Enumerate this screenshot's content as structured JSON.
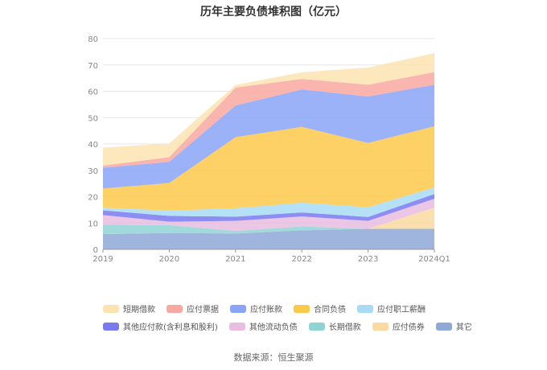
{
  "chart_data": {
    "type": "area",
    "stacked": true,
    "title": "历年主要负债堆积图（亿元）",
    "categories": [
      "2019",
      "2020",
      "2021",
      "2022",
      "2023",
      "2024Q1"
    ],
    "ylim": [
      0,
      80
    ],
    "yticks": [
      0,
      10,
      20,
      30,
      40,
      50,
      60,
      70,
      80
    ],
    "grid": true,
    "legend_position": "bottom",
    "series": [
      {
        "name": "其它",
        "color": "#8ea8d8",
        "values": [
          5.8,
          6.2,
          6.0,
          7.2,
          7.8,
          7.8
        ]
      },
      {
        "name": "应付债券",
        "color": "#fcd9a0",
        "values": [
          0.0,
          0.0,
          0.0,
          0.0,
          0.0,
          8.0
        ]
      },
      {
        "name": "长期借款",
        "color": "#8fd4d4",
        "values": [
          3.5,
          3.0,
          1.0,
          1.5,
          0.0,
          0.0
        ]
      },
      {
        "name": "其他流动负债",
        "color": "#e8bde0",
        "values": [
          3.7,
          1.3,
          3.8,
          3.8,
          3.0,
          3.4
        ]
      },
      {
        "name": "其他应付款(含利息和股利)",
        "color": "#7a7af0",
        "values": [
          1.8,
          2.2,
          1.6,
          1.5,
          1.5,
          1.8
        ]
      },
      {
        "name": "应付职工薪酬",
        "color": "#a8dcf4",
        "values": [
          1.0,
          2.0,
          3.2,
          3.7,
          3.7,
          2.5
        ]
      },
      {
        "name": "合同负债",
        "color": "#fdc94a",
        "values": [
          7.3,
          10.5,
          27.0,
          28.8,
          24.4,
          23.2
        ]
      },
      {
        "name": "应付账款",
        "color": "#8aa4f8",
        "values": [
          7.9,
          8.0,
          12.0,
          14.2,
          17.6,
          15.8
        ]
      },
      {
        "name": "应付票据",
        "color": "#f8a8a0",
        "values": [
          0.8,
          1.8,
          6.8,
          4.0,
          4.5,
          4.8
        ]
      },
      {
        "name": "短期借款",
        "color": "#fde3b0",
        "values": [
          6.8,
          5.2,
          1.0,
          2.5,
          6.5,
          7.2
        ]
      }
    ]
  },
  "legend_rows": [
    [
      {
        "label": "短期借款",
        "color": "#fde3b0"
      },
      {
        "label": "应付票据",
        "color": "#f8a8a0"
      },
      {
        "label": "应付账款",
        "color": "#8aa4f8"
      },
      {
        "label": "合同负债",
        "color": "#fdc94a"
      },
      {
        "label": "应付职工薪酬",
        "color": "#a8dcf4"
      }
    ],
    [
      {
        "label": "其他应付款(含利息和股利)",
        "color": "#7a7af0"
      },
      {
        "label": "其他流动负债",
        "color": "#e8bde0"
      },
      {
        "label": "长期借款",
        "color": "#8fd4d4"
      },
      {
        "label": "应付债券",
        "color": "#fcd9a0"
      },
      {
        "label": "其它",
        "color": "#8ea8d8"
      }
    ]
  ],
  "source": "数据来源：恒生聚源"
}
